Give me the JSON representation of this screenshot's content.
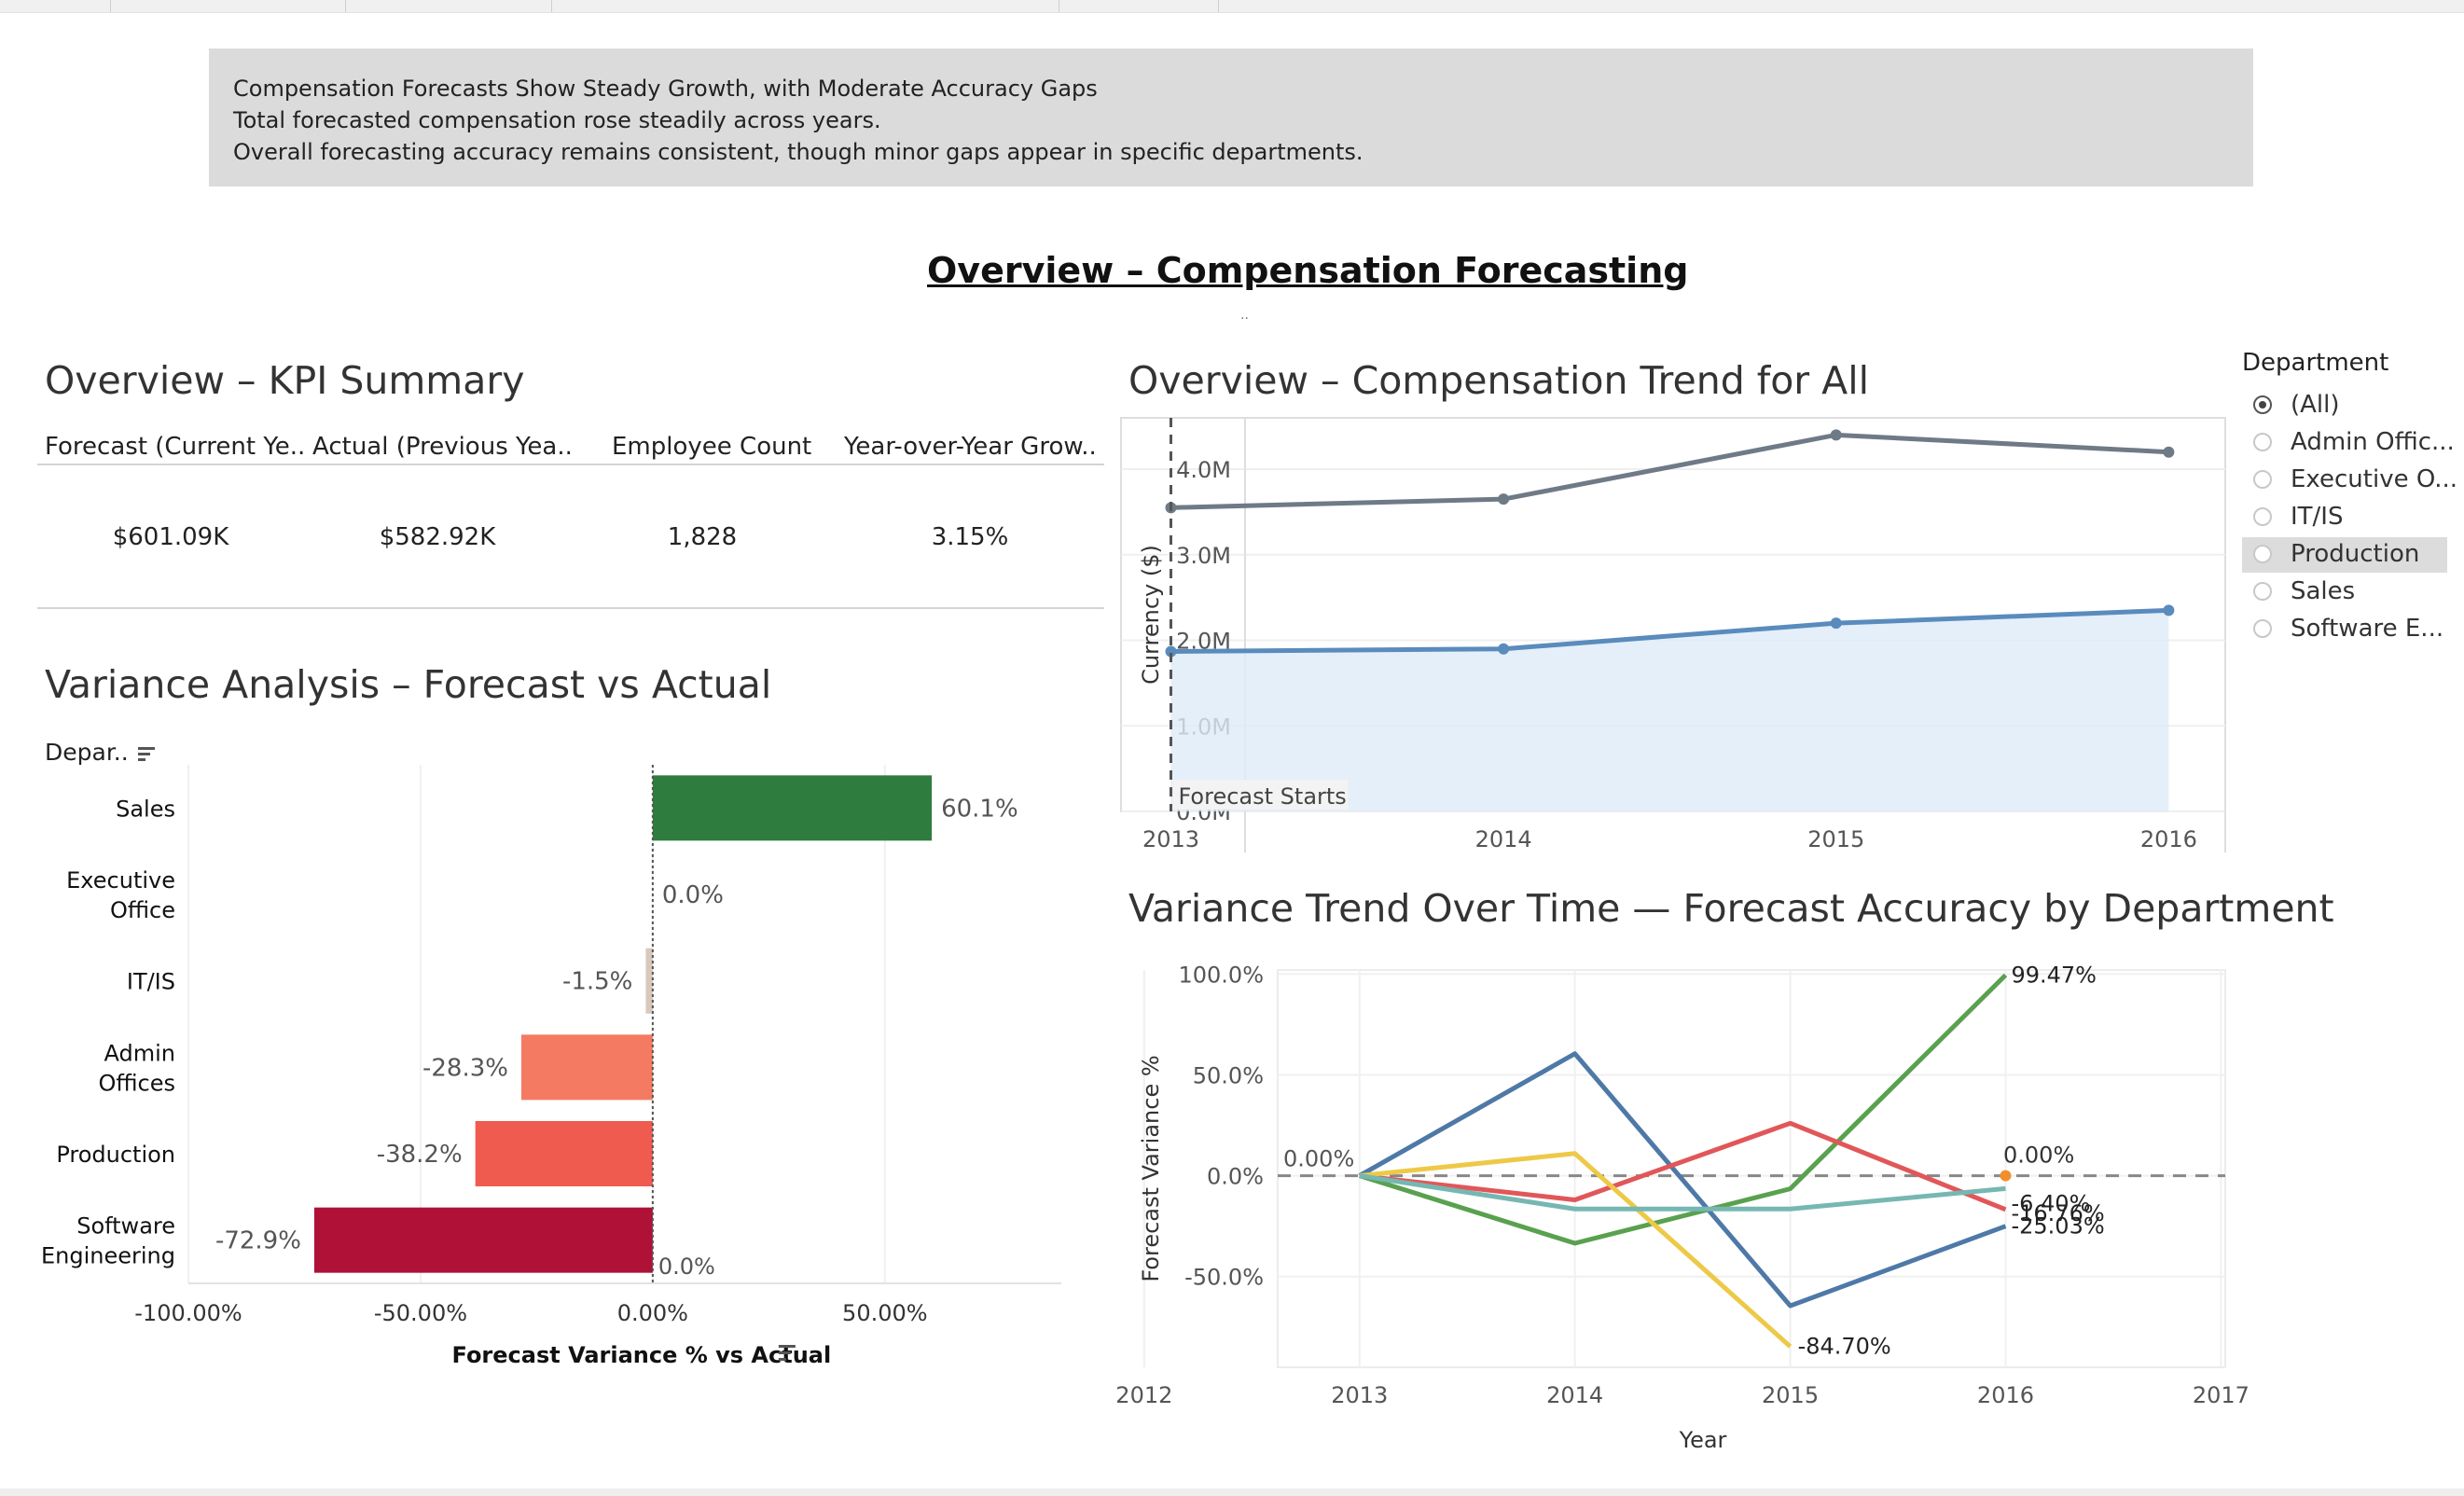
{
  "summary": {
    "line1": "Compensation Forecasts Show Steady Growth, with Moderate Accuracy Gaps",
    "line2": "Total forecasted compensation rose steadily across years.",
    "line3": "Overall forecasting accuracy remains consistent, though minor gaps appear in specific departments."
  },
  "main_title": "Overview – Compensation Forecasting",
  "dots": "..",
  "kpi": {
    "title": "Overview – KPI Summary",
    "headers": [
      "Forecast (Current Ye..",
      "Actual (Previous Yea..",
      "Employee Count",
      "Year-over-Year Grow.."
    ],
    "values": [
      "$601.09K",
      "$582.92K",
      "1,828",
      "3.15%"
    ]
  },
  "variance_title": "Variance Analysis – Forecast vs Actual",
  "variance_dept_header": "Depar..",
  "trend_title": "Overview – Compensation Trend for All",
  "vtrend_title": "Variance Trend Over Time — Forecast Accuracy by Department",
  "legend": {
    "title": "Department",
    "items": [
      "(All)",
      "Admin Offic...",
      "Executive O...",
      "IT/IS",
      "Production",
      "Sales",
      "Software E..."
    ],
    "selected_index": 0,
    "highlighted_index": 4
  },
  "chart_data": [
    {
      "type": "bar",
      "orientation": "horizontal",
      "categories": [
        "Sales",
        "Executive Office",
        "IT/IS",
        "Admin Offices",
        "Production",
        "Software Engineering"
      ],
      "category_lines": [
        [
          "Sales"
        ],
        [
          "Executive",
          "Office"
        ],
        [
          "IT/IS"
        ],
        [
          "Admin",
          "Offices"
        ],
        [
          "Production"
        ],
        [
          "Software",
          "Engineering"
        ]
      ],
      "values": [
        60.1,
        0.0,
        -1.5,
        -28.3,
        -38.2,
        -72.9
      ],
      "value_labels": [
        "60.1%",
        "0.0%",
        "-1.5%",
        "-28.3%",
        "-38.2%",
        "-72.9%"
      ],
      "colors": [
        "#2e7d3e",
        "#cccccc",
        "#d9c9bd",
        "#f47a62",
        "#ef5b4e",
        "#b01237"
      ],
      "reference_label": "0.0%",
      "xlabel": "Forecast Variance % vs Actual",
      "xticks": [
        "-100.00%",
        "-50.00%",
        "0.00%",
        "50.00%"
      ],
      "xtick_values": [
        -100,
        -50,
        0,
        50
      ],
      "xlim": [
        -100,
        88
      ]
    },
    {
      "type": "line",
      "x": [
        2013,
        2014,
        2015,
        2016
      ],
      "series": [
        {
          "values": [
            3.55,
            3.65,
            4.4,
            4.2
          ],
          "color": "#6f7a87"
        },
        {
          "values": [
            1.87,
            1.9,
            2.2,
            2.35
          ],
          "color": "#5a8bbd",
          "area": true
        }
      ],
      "ylabel": "Currency ($)",
      "yticks": [
        "0.0M",
        "1.0M",
        "2.0M",
        "3.0M",
        "4.0M"
      ],
      "ylim": [
        0,
        4.6
      ],
      "xlim": [
        2012.85,
        2016.17
      ],
      "annotation": {
        "x": 2013,
        "label": "Forecast Starts"
      }
    },
    {
      "type": "line",
      "x": [
        2013,
        2014,
        2015,
        2016
      ],
      "series": [
        {
          "values": [
            0,
            60.5,
            -64.5,
            -25.03
          ],
          "color": "#4e79a7"
        },
        {
          "values": [
            0,
            -33.5,
            -6.5,
            99.47
          ],
          "color": "#59a14f"
        },
        {
          "values": [
            0,
            -12,
            26,
            -16.76
          ],
          "color": "#e15759"
        },
        {
          "values": [
            0,
            11,
            -84.7,
            null
          ],
          "color": "#edc948"
        },
        {
          "values": [
            0,
            -16.5,
            -16.5,
            -6.4
          ],
          "color": "#76b7b2"
        }
      ],
      "end_labels": [
        "99.47%",
        "-6.40%",
        "-16.76%",
        "-25.03%",
        "-84.70%"
      ],
      "zero_labels": [
        "0.00%",
        "0.00%"
      ],
      "xlabel": "Year",
      "ylabel": "Forecast Variance %",
      "xticks": [
        2012,
        2013,
        2014,
        2015,
        2016,
        2017
      ],
      "yticks": [
        "100.0%",
        "50.0%",
        "0.0%",
        "-50.0%"
      ],
      "ylim": [
        -95,
        102
      ]
    }
  ]
}
